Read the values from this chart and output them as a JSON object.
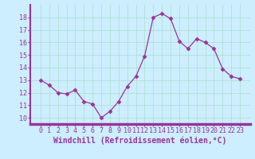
{
  "x": [
    0,
    1,
    2,
    3,
    4,
    5,
    6,
    7,
    8,
    9,
    10,
    11,
    12,
    13,
    14,
    15,
    16,
    17,
    18,
    19,
    20,
    21,
    22,
    23
  ],
  "y": [
    13.0,
    12.6,
    12.0,
    11.9,
    12.2,
    11.3,
    11.1,
    10.0,
    10.5,
    11.3,
    12.5,
    13.3,
    14.9,
    18.0,
    18.3,
    17.9,
    16.1,
    15.5,
    16.3,
    16.0,
    15.5,
    13.9,
    13.3,
    13.1
  ],
  "line_color": "#993399",
  "marker": "D",
  "marker_size": 2.5,
  "bg_color": "#cceeff",
  "grid_color": "#aaddcc",
  "xlabel": "Windchill (Refroidissement éolien,°C)",
  "xlabel_color": "#993399",
  "xlabel_fontsize": 7.0,
  "tick_color": "#993399",
  "tick_fontsize": 6.0,
  "ylim": [
    9.5,
    19.0
  ],
  "yticks": [
    10,
    11,
    12,
    13,
    14,
    15,
    16,
    17,
    18
  ],
  "xticks": [
    0,
    1,
    2,
    3,
    4,
    5,
    6,
    7,
    8,
    9,
    10,
    11,
    12,
    13,
    14,
    15,
    16,
    17,
    18,
    19,
    20,
    21,
    22,
    23
  ],
  "spine_color": "#993399",
  "axis_bar_color": "#993399"
}
